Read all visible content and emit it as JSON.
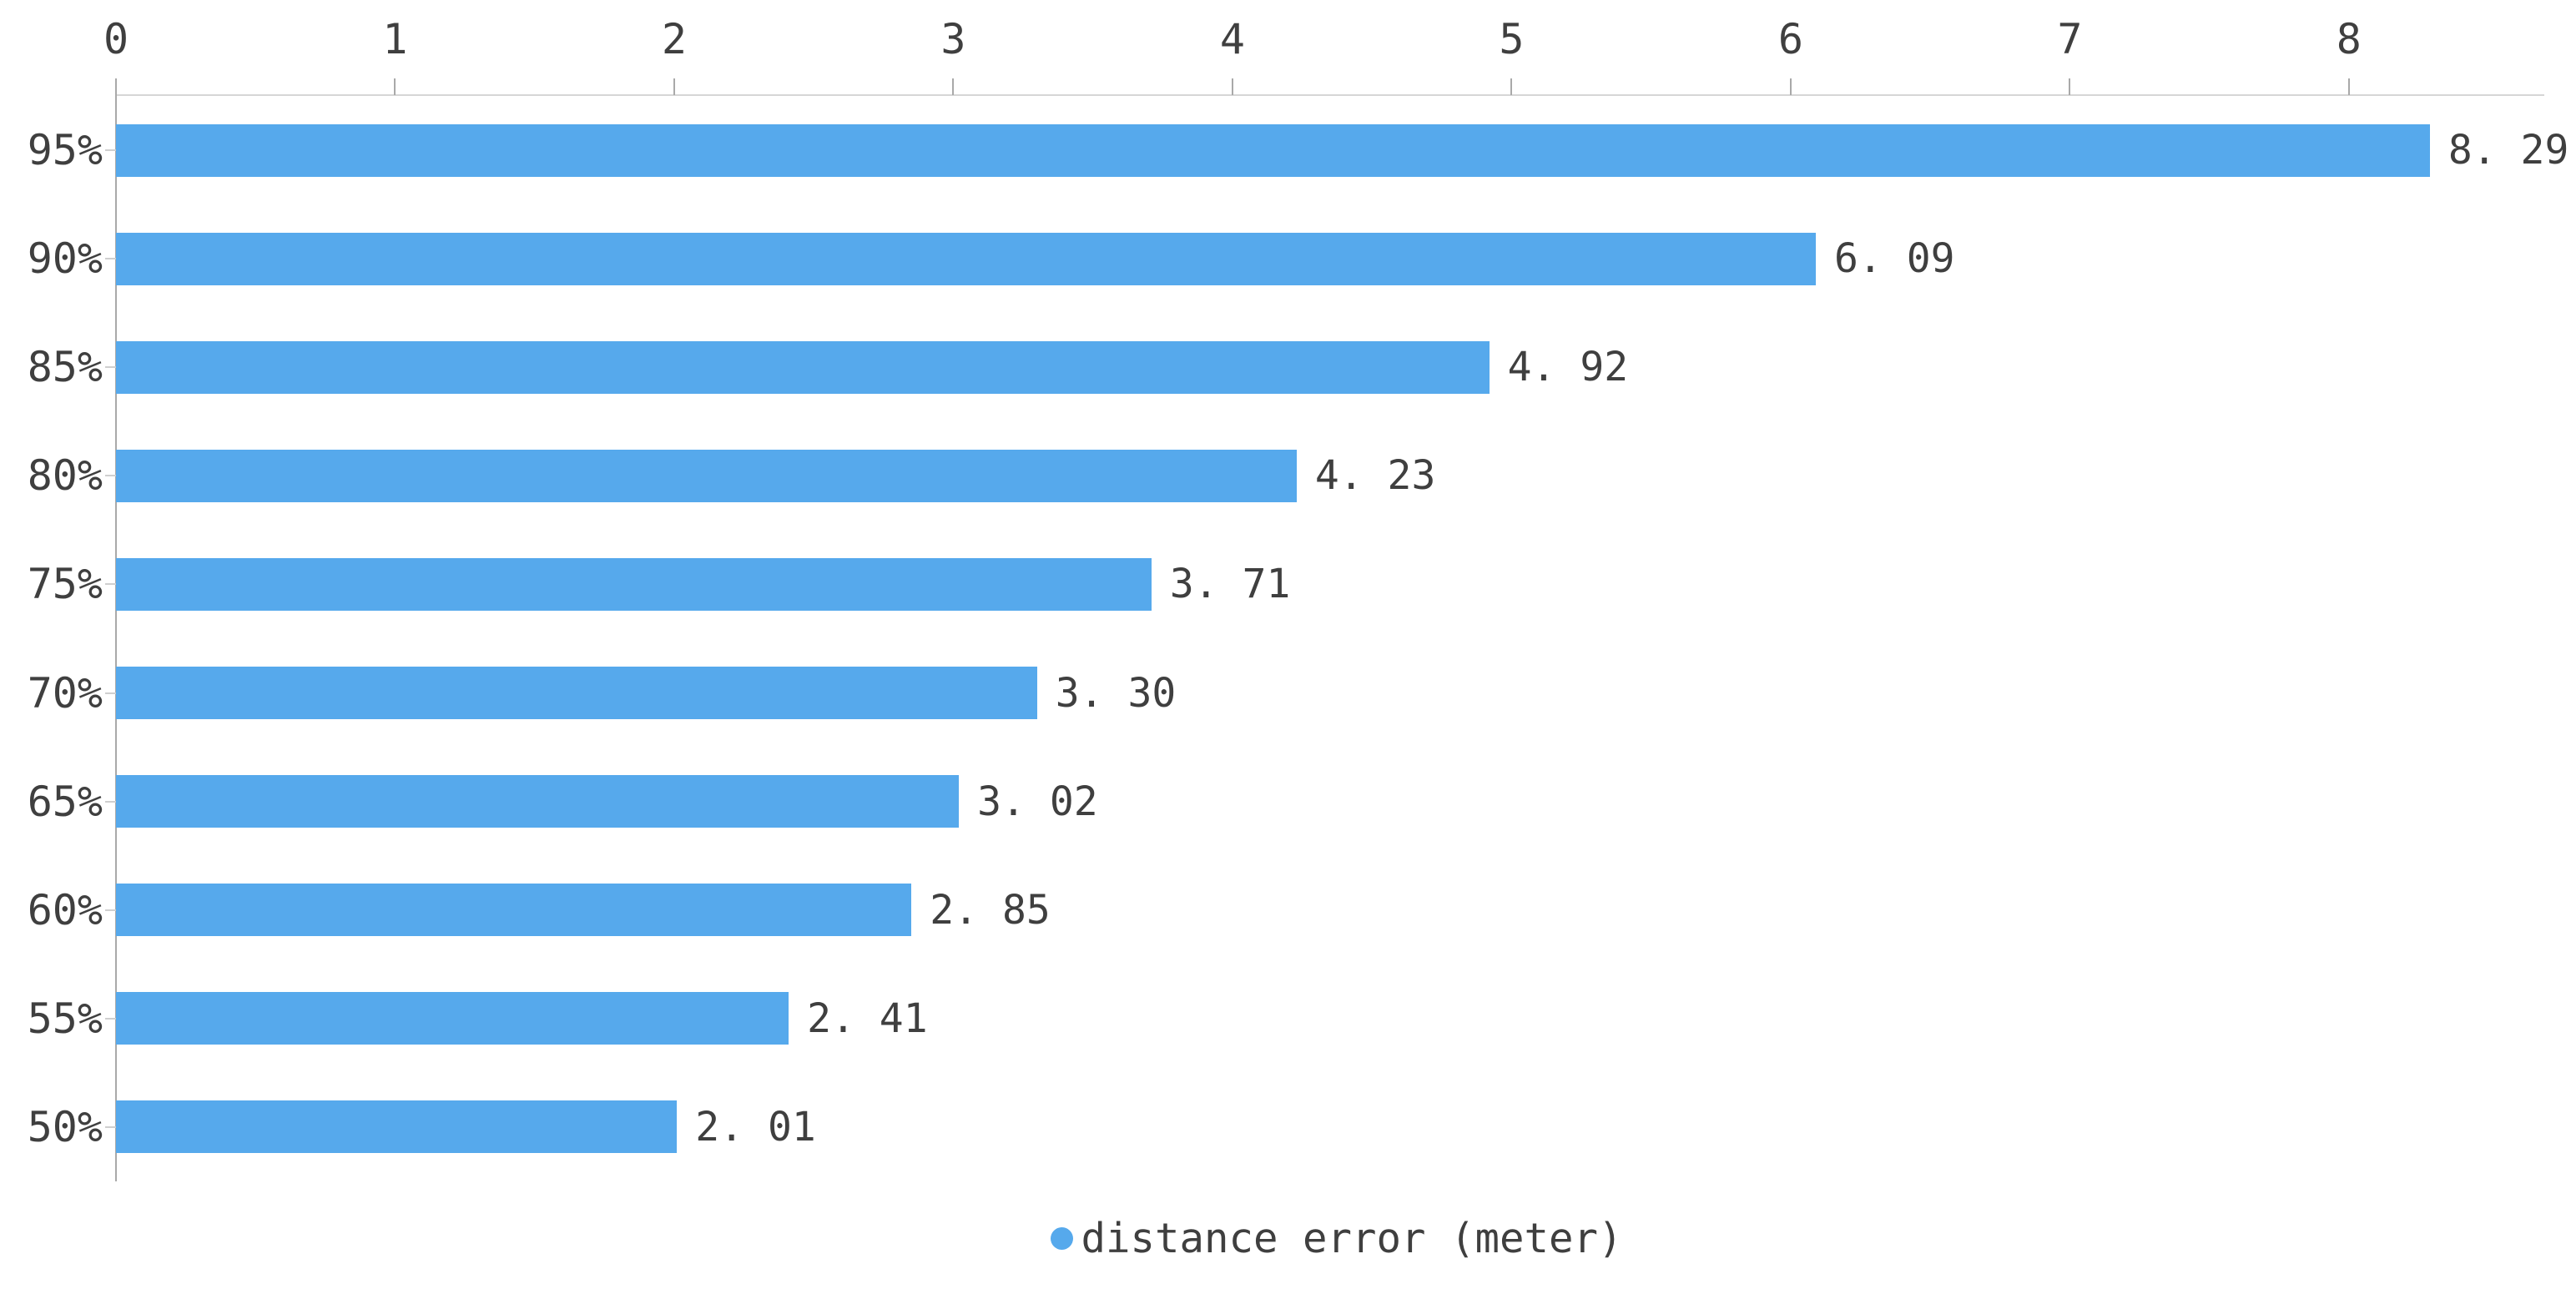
{
  "chart_data": {
    "type": "bar",
    "orientation": "horizontal",
    "title": "",
    "categories": [
      "95%",
      "90%",
      "85%",
      "80%",
      "75%",
      "70%",
      "65%",
      "60%",
      "55%",
      "50%"
    ],
    "series": [
      {
        "name": "distance error (meter)",
        "values": [
          8.29,
          6.09,
          4.92,
          4.23,
          3.71,
          3.3,
          3.02,
          2.85,
          2.41,
          2.01
        ]
      }
    ],
    "value_labels": [
      "8. 29",
      "6. 09",
      "4. 92",
      "4. 23",
      "3. 71",
      "3. 30",
      "3. 02",
      "2. 85",
      "2. 41",
      "2. 01"
    ],
    "x_ticks": [
      "0",
      "1",
      "2",
      "3",
      "4",
      "5",
      "6",
      "7",
      "8"
    ],
    "xlim": [
      0,
      8.7
    ],
    "xlabel": "",
    "ylabel": "",
    "axis_position": "top",
    "grid": false,
    "legend": {
      "label": "distance error (meter)",
      "position": "bottom-center",
      "marker": "circle"
    },
    "colors": {
      "bar": "#56a9ec",
      "text": "#3f3f3f",
      "axis_line": "#d6d6d6",
      "tick": "#a9a9a9",
      "category_tick": "#cfcfcf"
    }
  }
}
